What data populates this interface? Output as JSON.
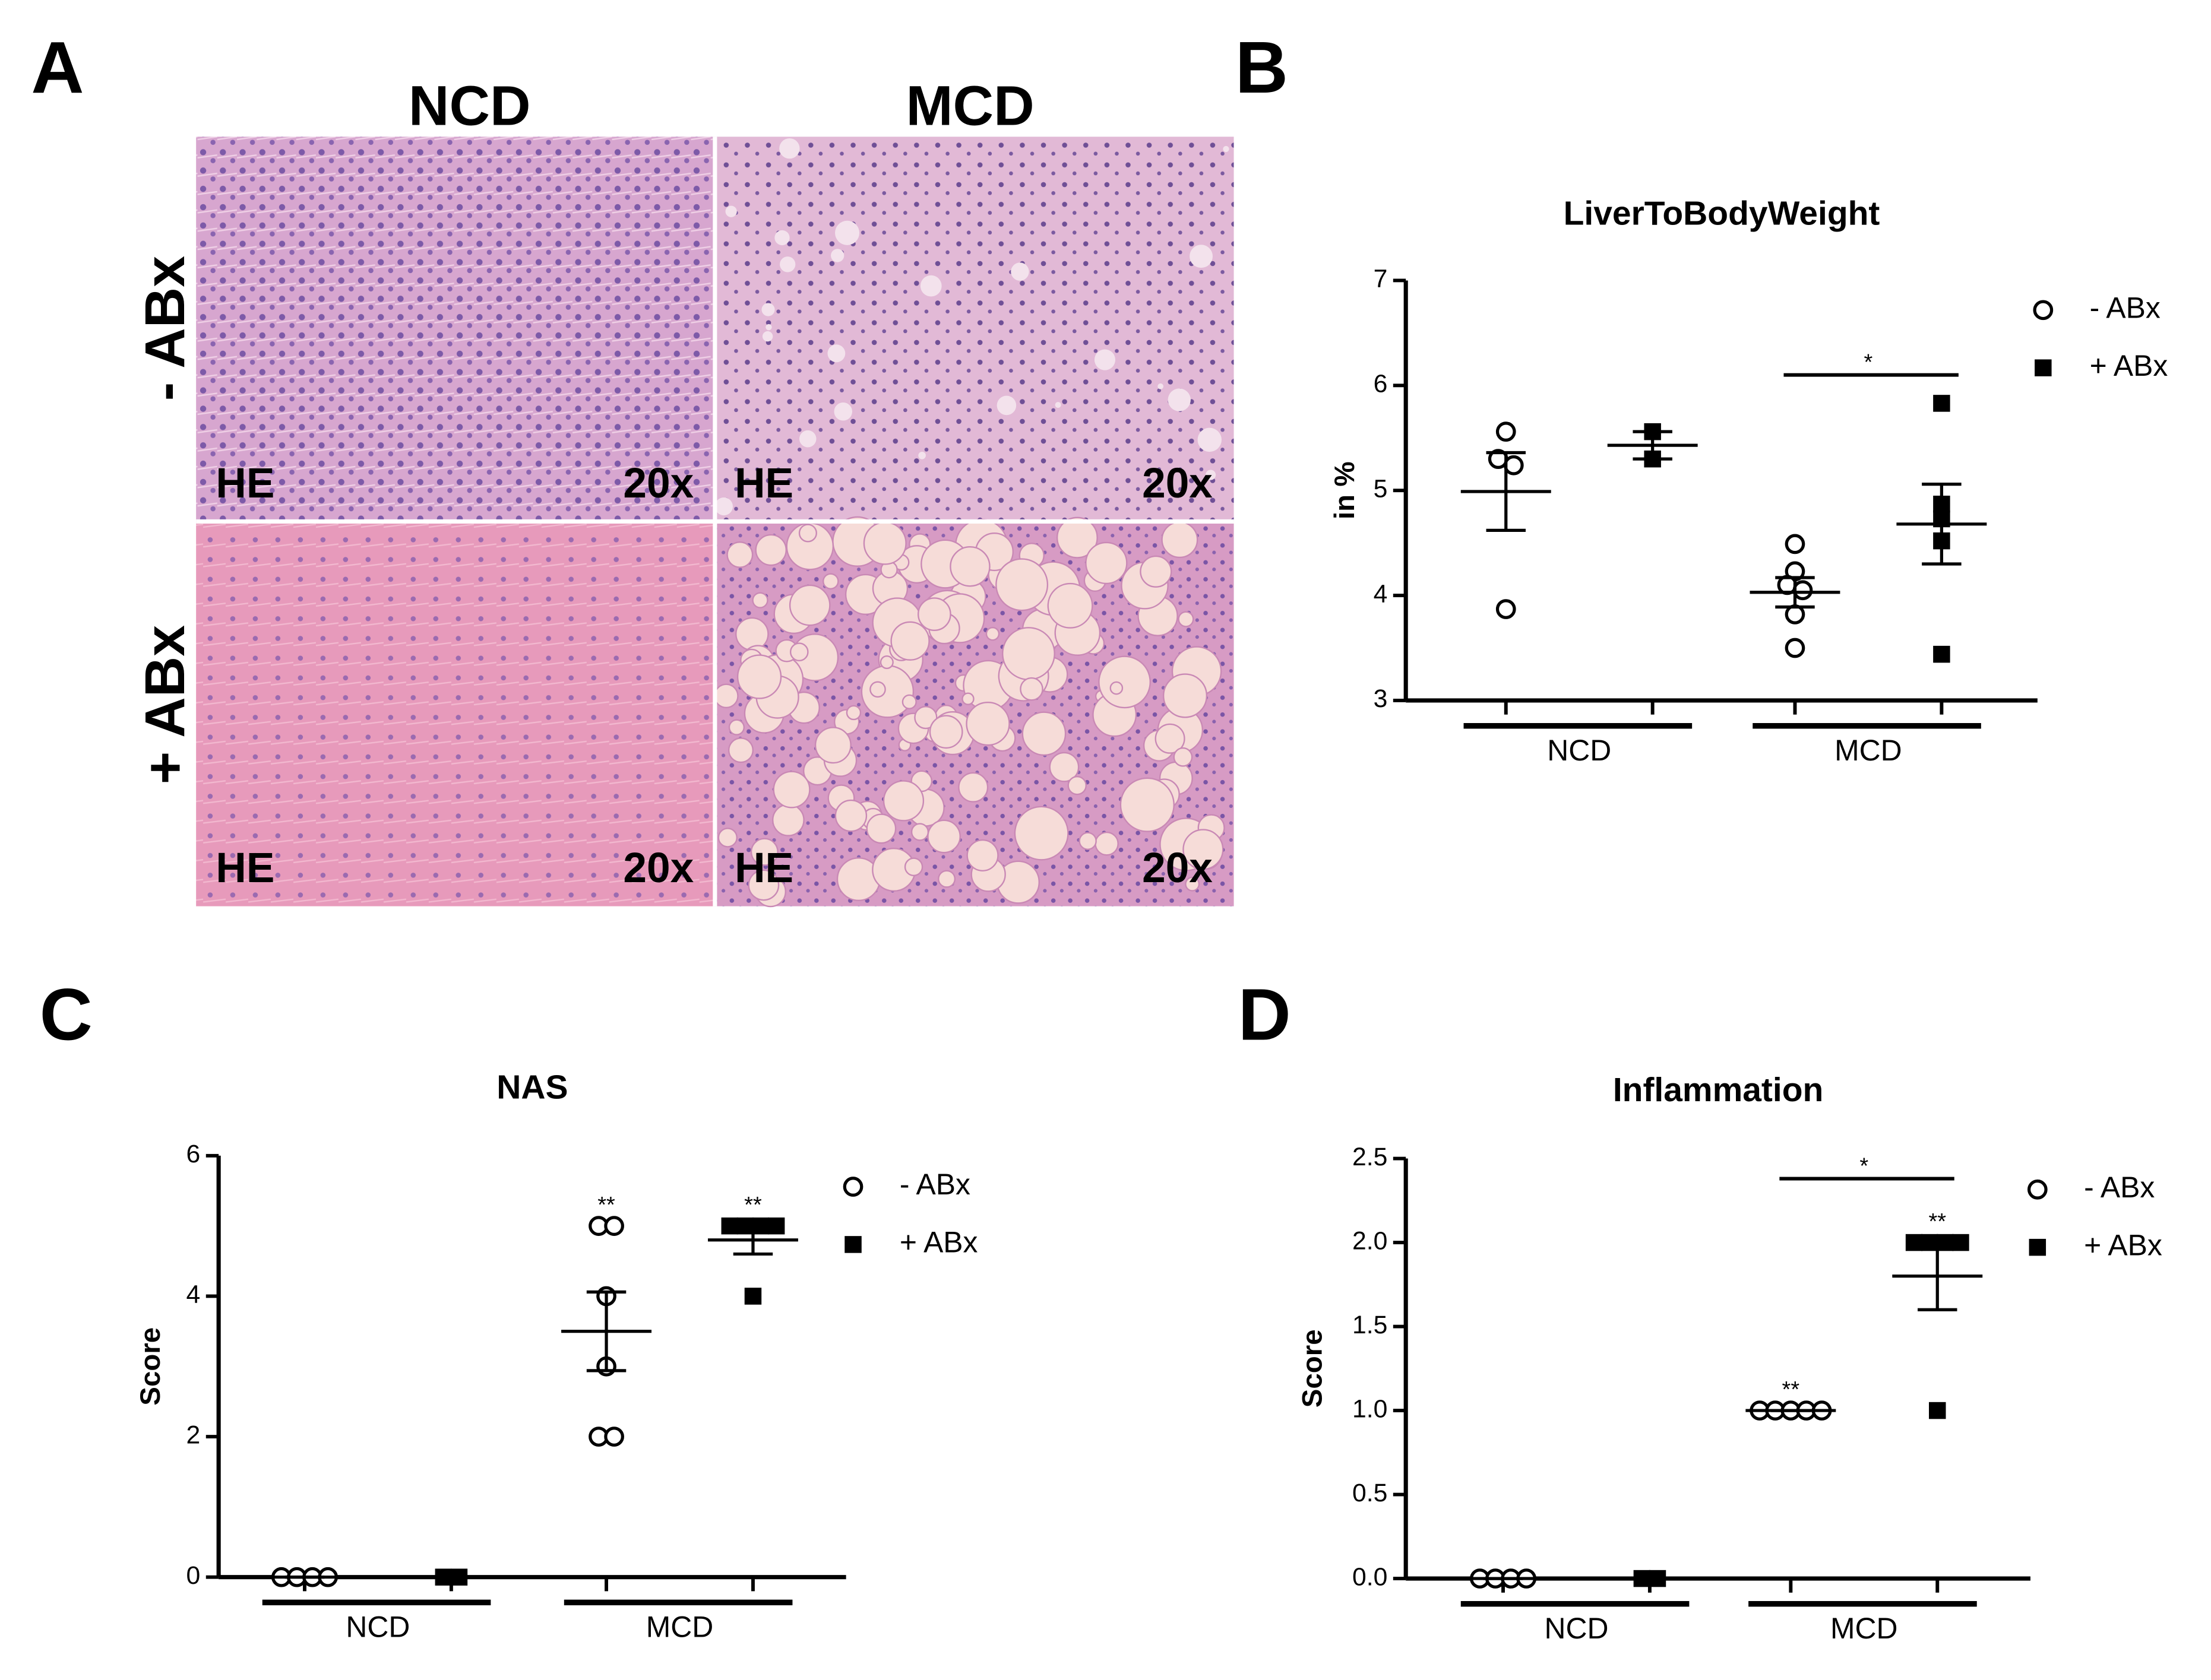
{
  "panel_labels": [
    "A",
    "B",
    "C",
    "D"
  ],
  "micrograph": {
    "columns": [
      "NCD",
      "MCD"
    ],
    "rows": [
      "- ABx",
      "+ ABx"
    ],
    "stain": "HE",
    "magnification": "20x"
  },
  "chart_data": [
    {
      "type": "dot",
      "title": "LiverToBodyWeight",
      "ylabel": "in %",
      "categories": [
        "NCD",
        "MCD"
      ],
      "ylim": [
        3,
        7
      ],
      "yticks": [
        3,
        4,
        5,
        6,
        7
      ],
      "legend": "right",
      "bracket": {
        "label": "*",
        "y": 6.1
      },
      "series": [
        {
          "name": "- ABx",
          "marker": "circle",
          "color": "#000000",
          "values": [
            [
              5.56,
              5.3,
              5.24,
              3.87
            ],
            [
              4.49,
              4.23,
              4.1,
              4.05,
              3.82,
              3.5
            ]
          ],
          "mean": [
            4.99,
            4.03
          ],
          "sem": [
            0.37,
            0.14
          ]
        },
        {
          "name": "+ ABx",
          "marker": "square",
          "color": "#000000",
          "values": [
            [
              5.56,
              5.3
            ],
            [
              5.83,
              4.87,
              4.73,
              4.52,
              3.44
            ]
          ],
          "mean": [
            5.43,
            4.68
          ],
          "sem": [
            0.13,
            0.38
          ]
        }
      ]
    },
    {
      "type": "dot",
      "title": "NAS",
      "ylabel": "Score",
      "categories": [
        "NCD",
        "MCD"
      ],
      "ylim": [
        0,
        6
      ],
      "yticks": [
        0,
        2,
        4,
        6
      ],
      "legend": "right",
      "series": [
        {
          "name": "- ABx",
          "marker": "circle",
          "color": "#000000",
          "values": [
            [
              0,
              0,
              0,
              0
            ],
            [
              5,
              5,
              4,
              3,
              2,
              2
            ]
          ],
          "mean": [
            0,
            3.5
          ],
          "sem": [
            0,
            0.56
          ],
          "stars": [
            null,
            "**"
          ]
        },
        {
          "name": "+ ABx",
          "marker": "square",
          "color": "#000000",
          "values": [
            [
              0,
              0
            ],
            [
              5,
              5,
              5,
              5,
              4
            ]
          ],
          "mean": [
            0,
            4.8
          ],
          "sem": [
            0,
            0.2
          ],
          "stars": [
            null,
            "**"
          ]
        }
      ]
    },
    {
      "type": "dot",
      "title": "Inflammation",
      "ylabel": "Score",
      "categories": [
        "NCD",
        "MCD"
      ],
      "ylim": [
        0,
        2.5
      ],
      "yticks": [
        {
          "value": 0,
          "label": "0.0"
        },
        {
          "value": 0.5,
          "label": "0.5"
        },
        {
          "value": 1,
          "label": "1.0"
        },
        {
          "value": 1.5,
          "label": "1.5"
        },
        {
          "value": 2,
          "label": "2.0"
        },
        2.5
      ],
      "legend": "right",
      "bracket": {
        "label": "*",
        "y": 2.38
      },
      "series": [
        {
          "name": "- ABx",
          "marker": "circle",
          "color": "#000000",
          "values": [
            [
              0,
              0,
              0,
              0
            ],
            [
              1,
              1,
              1,
              1,
              1
            ]
          ],
          "mean": [
            0,
            1
          ],
          "sem": [
            0,
            0
          ],
          "stars": [
            null,
            "**"
          ]
        },
        {
          "name": "+ ABx",
          "marker": "square",
          "color": "#000000",
          "values": [
            [
              0,
              0
            ],
            [
              2,
              2,
              2,
              2,
              1
            ]
          ],
          "mean": [
            0,
            1.8
          ],
          "sem": [
            0,
            0.2
          ],
          "stars": [
            null,
            "**"
          ]
        }
      ]
    }
  ]
}
